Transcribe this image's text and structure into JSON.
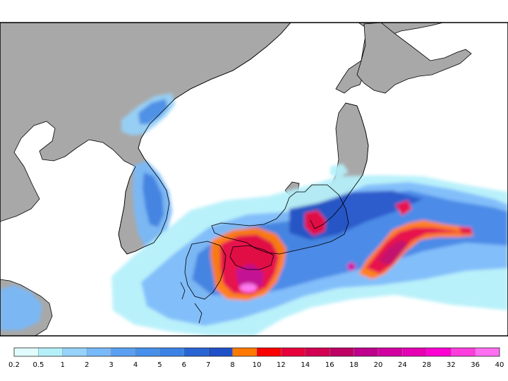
{
  "colorbar": {
    "labels": [
      "0.2",
      "0.5",
      "1",
      "2",
      "3",
      "4",
      "5",
      "6",
      "7",
      "8",
      "10",
      "12",
      "14",
      "16",
      "18",
      "20",
      "24",
      "28",
      "32",
      "36",
      "40"
    ],
    "colors": [
      "#e0fcfc",
      "#b4f0fa",
      "#96d2fa",
      "#78b9fa",
      "#5aa0f0",
      "#4690eb",
      "#3c82e6",
      "#2864d2",
      "#1e50c8",
      "#ff7800",
      "#fa0000",
      "#e6003c",
      "#d20050",
      "#be0064",
      "#be008c",
      "#d200a0",
      "#e600b4",
      "#ff00d2",
      "#ff3cdc",
      "#ff6ef0"
    ]
  },
  "palette": {
    "land": "#a8a8a8",
    "sea": "#ffffff",
    "coast": "#000000"
  }
}
